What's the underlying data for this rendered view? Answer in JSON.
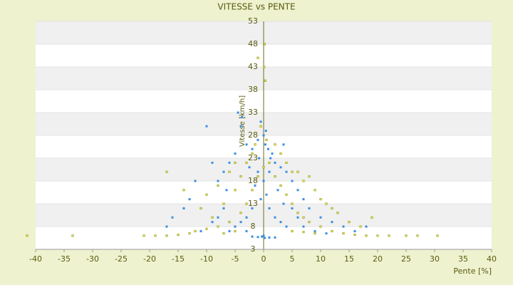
{
  "chart_data": {
    "type": "scatter",
    "title": "VITESSE vs PENTE",
    "x_label": "Pente [%]",
    "y_label": "Vitesse [km/h]",
    "xlim": [
      -40,
      40
    ],
    "xticks": [
      -40,
      -35,
      -30,
      -25,
      -20,
      -15,
      -10,
      -5,
      0,
      5,
      10,
      15,
      20,
      25,
      30,
      35,
      40
    ],
    "ylim": [
      3,
      53
    ],
    "yticks": [
      3,
      8,
      13,
      18,
      23,
      28,
      33,
      38,
      43,
      48,
      53
    ],
    "grid": true,
    "series": [
      {
        "color": "#3a8ee0",
        "x": [
          -0.5,
          0,
          0.3,
          -1,
          0.8,
          1.5,
          -2,
          -3,
          -4,
          -4.5,
          -3.8,
          -5,
          -6,
          -7,
          -8,
          -9,
          -10,
          -12,
          -13,
          -14,
          -16,
          -17,
          2,
          3,
          4,
          5,
          6,
          7,
          8,
          10,
          12,
          14,
          16,
          18,
          1,
          -1,
          0,
          0.5,
          -0.5,
          1,
          2,
          3,
          4,
          -2,
          -3,
          -4,
          -5,
          -6,
          0,
          0.2,
          -0.3,
          1,
          -1,
          2,
          -2,
          5,
          6,
          -7,
          -8,
          -9,
          9,
          11,
          -11,
          -2.5,
          2.5,
          3.5,
          -1.5,
          1.2,
          -0.8,
          0.4,
          3.5,
          -6.5,
          7,
          -3
        ],
        "values": [
          31,
          28,
          26,
          27,
          25,
          24,
          25,
          26,
          30,
          33,
          32,
          24,
          22,
          20,
          18,
          22,
          30,
          18,
          14,
          12,
          10,
          8,
          22,
          21,
          20,
          18,
          16,
          14,
          12,
          10,
          9,
          8,
          7,
          8,
          20,
          20,
          18,
          15,
          14,
          12,
          10,
          9,
          8,
          12,
          10,
          9,
          8,
          7,
          6,
          5.5,
          5.8,
          5.6,
          5.7,
          5.6,
          5.8,
          12,
          10,
          12,
          10,
          9,
          7,
          6.5,
          7,
          21,
          16,
          13,
          17,
          23,
          23,
          29,
          26,
          16,
          8,
          7
        ]
      },
      {
        "color": "#8b8b00",
        "x": [
          -41.5,
          -33.5,
          -21,
          -19,
          -17,
          -15,
          -13,
          -12,
          -10,
          -8,
          -6,
          -4,
          -3,
          -2,
          -1,
          0,
          -17,
          -14,
          -11,
          -9,
          -7,
          -5,
          -4,
          -3,
          -10,
          -8,
          -6,
          -5,
          -2,
          1,
          2,
          3,
          4,
          5,
          6,
          7,
          8,
          10,
          12,
          14,
          16,
          18,
          20,
          22,
          25,
          27,
          30.5,
          5,
          7,
          9,
          11,
          13,
          15,
          17,
          19,
          -0.5,
          0.5,
          -1.5,
          2,
          3,
          4,
          6,
          8,
          10,
          12,
          -7,
          -5,
          5,
          7,
          9,
          0.2,
          0.1,
          0.3,
          -1
        ],
        "values": [
          6,
          6,
          6,
          6,
          6,
          6.2,
          6.5,
          7,
          7.5,
          8,
          9,
          11,
          13,
          16,
          19,
          21,
          20,
          16,
          12,
          10,
          13,
          16,
          19,
          22,
          15,
          17,
          20,
          22,
          24,
          22,
          19,
          17,
          15,
          13,
          11,
          10,
          9,
          8,
          7,
          6.5,
          6.2,
          6,
          6,
          6,
          6,
          6,
          6,
          20,
          18,
          16,
          13,
          11,
          9,
          8,
          10,
          30,
          27,
          26,
          26,
          24,
          22,
          20,
          19,
          14,
          12,
          6.5,
          7,
          7,
          6.8,
          6.5,
          48,
          43,
          40,
          45
        ]
      }
    ]
  }
}
